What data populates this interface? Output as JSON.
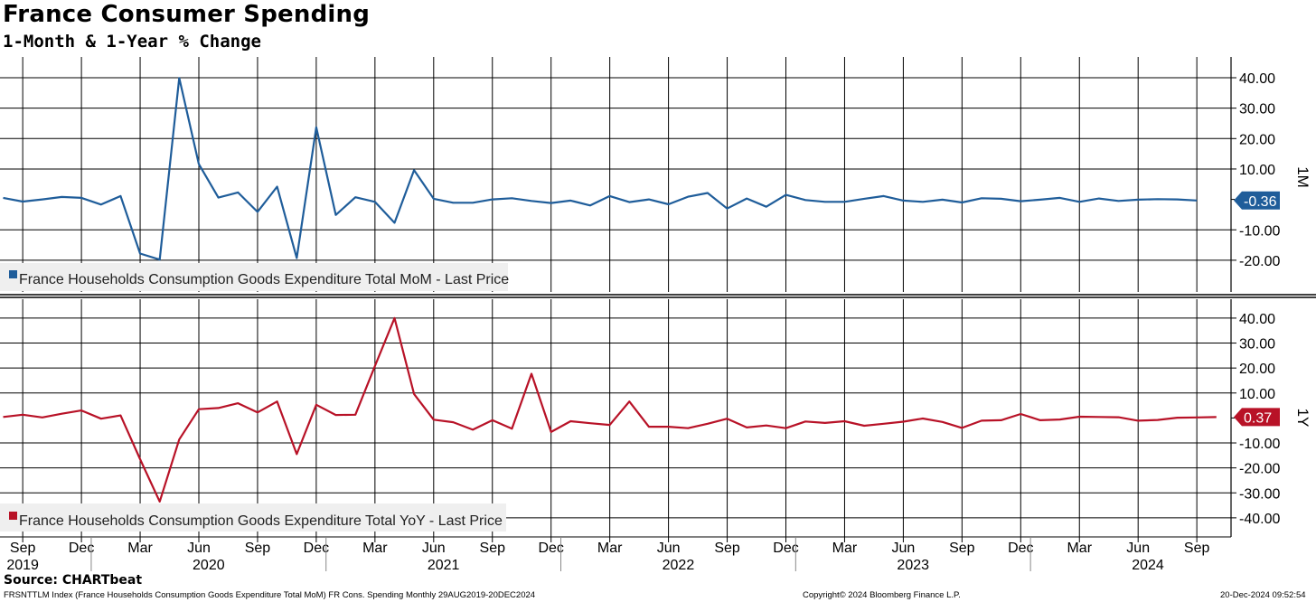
{
  "title": "France Consumer Spending",
  "subtitle": "1-Month & 1-Year % Change",
  "source": "Source: CHARTbeat",
  "footer": {
    "left": "FRSNTTLM Index (France Households Consumption Goods Expenditure Total MoM) FR Cons. Spending  Monthly 29AUG2019-20DEC2024",
    "center": "Copyright© 2024 Bloomberg Finance L.P.",
    "right": "20-Dec-2024 09:52:54"
  },
  "colors": {
    "mom": "#1f5d9a",
    "yoy": "#b81227",
    "grid": "#000000"
  },
  "chart_data": [
    {
      "type": "line",
      "panel": "top",
      "axis_title": "1M",
      "legend": "France Households Consumption Goods Expenditure Total MoM - Last Price",
      "last_value_label": "-0.36",
      "last_value": -0.36,
      "ylim": [
        -30,
        46
      ],
      "yticks": [
        40,
        30,
        20,
        10,
        -10,
        -20
      ],
      "ytick_labels": [
        "40.00",
        "30.00",
        "20.00",
        "10.00",
        "-10.00",
        "-20.00"
      ],
      "x_start": "2019-08",
      "values": [
        0.5,
        -0.7,
        0,
        0.8,
        0.5,
        -1.7,
        1.1,
        -17.8,
        -19.8,
        39.9,
        11.6,
        0.6,
        2.3,
        -4.1,
        4.2,
        -19.3,
        23.7,
        -5.1,
        0.7,
        -0.8,
        -7.7,
        9.6,
        0.2,
        -1.1,
        -1.1,
        0,
        0.4,
        -0.5,
        -1.2,
        -0.4,
        -2,
        1.1,
        -0.9,
        0,
        -1.6,
        0.9,
        2.1,
        -3,
        0.3,
        -2.4,
        1.5,
        -0.2,
        -0.8,
        -0.8,
        0.2,
        1.1,
        -0.4,
        -0.8,
        -0.1,
        -1,
        0.4,
        0.2,
        -0.6,
        -0.1,
        0.5,
        -0.8,
        0.3,
        -0.5,
        -0.1,
        0.1,
        0,
        -0.36
      ]
    },
    {
      "type": "line",
      "panel": "bottom",
      "axis_title": "1Y",
      "legend": "France Households Consumption Goods Expenditure Total YoY - Last Price",
      "last_value_label": "0.37",
      "last_value": 0.37,
      "ylim": [
        -45,
        45
      ],
      "yticks": [
        40,
        30,
        20,
        10,
        -10,
        -20,
        -30,
        -40
      ],
      "ytick_labels": [
        "40.00",
        "30.00",
        "20.00",
        "10.00",
        "-10.00",
        "-20.00",
        "-30.00",
        "-40.00"
      ],
      "x_start": "2019-08",
      "values": [
        0.4,
        1.3,
        0.2,
        1.7,
        3,
        -0.3,
        1,
        -16.5,
        -33.5,
        -8.6,
        3.5,
        4,
        5.9,
        2.2,
        6.6,
        -14.5,
        5.3,
        1.2,
        1.3,
        20.8,
        40,
        9.6,
        -0.7,
        -1.7,
        -4.7,
        -0.9,
        -4.3,
        17.7,
        -5.6,
        -1.3,
        -2.1,
        -2.8,
        6.6,
        -3.5,
        -3.5,
        -4.1,
        -2.3,
        -0.3,
        -3.8,
        -3,
        -4.1,
        -1.4,
        -2,
        -1.3,
        -3.1,
        -2.3,
        -1.5,
        -0.2,
        -1.6,
        -4,
        -1.1,
        -0.9,
        1.6,
        -0.9,
        -0.6,
        0.5,
        0.4,
        0.3,
        -1.1,
        -0.8,
        0.1,
        0.2,
        0.37
      ]
    }
  ],
  "x_axis": {
    "month_labels": [
      "Sep",
      "Dec",
      "Mar",
      "Jun",
      "Sep",
      "Dec",
      "Mar",
      "Jun",
      "Sep",
      "Dec",
      "Mar",
      "Jun",
      "Sep",
      "Dec",
      "Mar",
      "Jun",
      "Sep",
      "Dec",
      "Mar",
      "Jun",
      "Sep"
    ],
    "year_labels": [
      "2019",
      "2020",
      "2021",
      "2022",
      "2023",
      "2024"
    ]
  }
}
